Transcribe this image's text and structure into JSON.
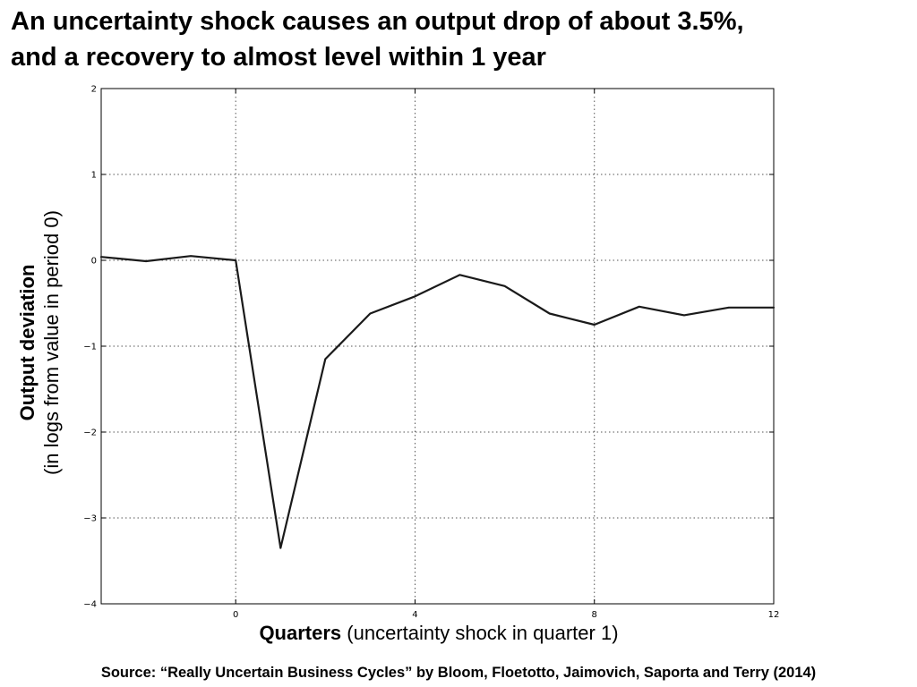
{
  "slide": {
    "title_line1": "An uncertainty shock causes an output drop of about 3.5%,",
    "title_line2": "and a recovery to almost level within 1 year",
    "source": "Source: “Really Uncertain Business Cycles” by Bloom, Floetotto, Jaimovich, Saporta and Terry (2014)"
  },
  "chart_data": {
    "type": "line",
    "title": "",
    "xlabel_main": "Quarters",
    "xlabel_sub": "(uncertainty shock in quarter 1)",
    "ylabel_main": "Output deviation",
    "ylabel_sub": "(in logs from value in period 0)",
    "xlim": [
      -3,
      12
    ],
    "ylim": [
      -4,
      2
    ],
    "xticks": [
      0,
      4,
      8,
      12
    ],
    "xtick_labels": [
      "0",
      "4",
      "8",
      "12"
    ],
    "yticks": [
      -4,
      -3,
      -2,
      -1,
      0,
      1,
      2
    ],
    "ytick_labels": [
      "−4",
      "−3",
      "−2",
      "−1",
      "0",
      "1",
      "2"
    ],
    "grid": true,
    "grid_style": "dotted",
    "line_color": "#1a1a1a",
    "series": [
      {
        "x": [
          -3,
          -2,
          -1,
          0,
          1,
          2,
          3,
          4,
          5,
          6,
          7,
          8,
          9,
          10,
          11,
          12
        ],
        "values": [
          0.04,
          -0.01,
          0.05,
          0.0,
          -3.35,
          -1.15,
          -0.62,
          -0.42,
          -0.17,
          -0.3,
          -0.62,
          -0.75,
          -0.54,
          -0.64,
          -0.55,
          -0.55
        ]
      }
    ]
  }
}
